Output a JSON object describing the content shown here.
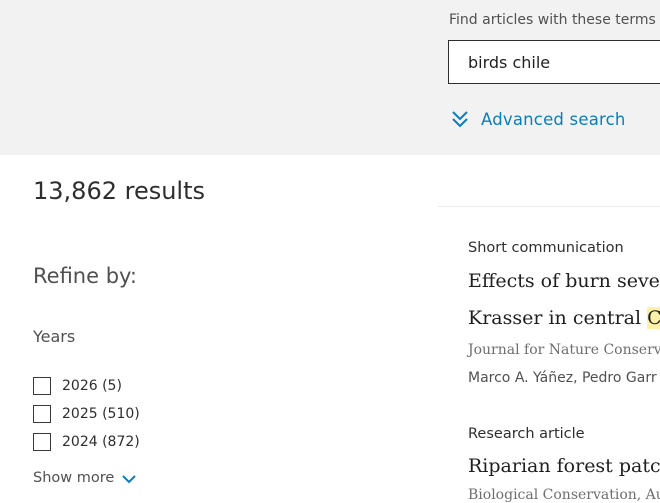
{
  "search": {
    "label": "Find articles with these terms",
    "value": "birds chile",
    "advanced_label": "Advanced search"
  },
  "results": {
    "count_text": "13,862 results"
  },
  "refine": {
    "title": "Refine by:",
    "years_title": "Years",
    "years": [
      {
        "label": "2026 (5)"
      },
      {
        "label": "2025 (510)"
      },
      {
        "label": "2024 (872)"
      }
    ],
    "show_more": "Show more"
  },
  "articles": [
    {
      "type": "Short communication",
      "title_line1": "Effects of burn severit",
      "title_line2_pre": "Krasser in central ",
      "title_line2_hl": "Chil",
      "journal": "Journal for Nature Conserva",
      "authors": "Marco A. Yáñez, Pedro Garr"
    },
    {
      "type": "Research article",
      "title_line1": "Riparian forest patche",
      "journal": "Biological Conservation, Au"
    }
  ],
  "colors": {
    "accent": "#0c7dbb",
    "highlight": "#fdf0a8",
    "band": "#f2f2f2"
  }
}
